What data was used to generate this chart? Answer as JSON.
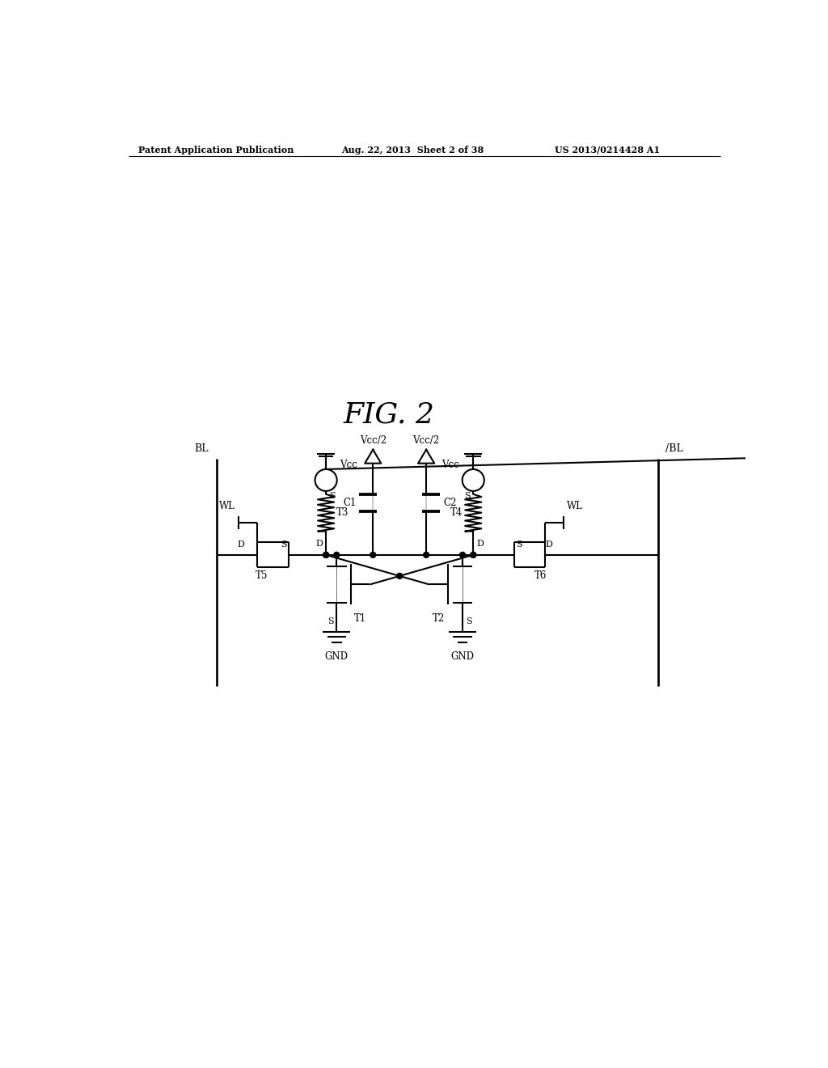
{
  "title": "FIG. 2",
  "header_left": "Patent Application Publication",
  "header_center": "Aug. 22, 2013  Sheet 2 of 38",
  "header_right": "US 2013/0214428 A1",
  "background_color": "#ffffff",
  "line_color": "#000000",
  "lw": 1.5,
  "fig_width": 10.24,
  "fig_height": 13.2,
  "dpi": 100
}
